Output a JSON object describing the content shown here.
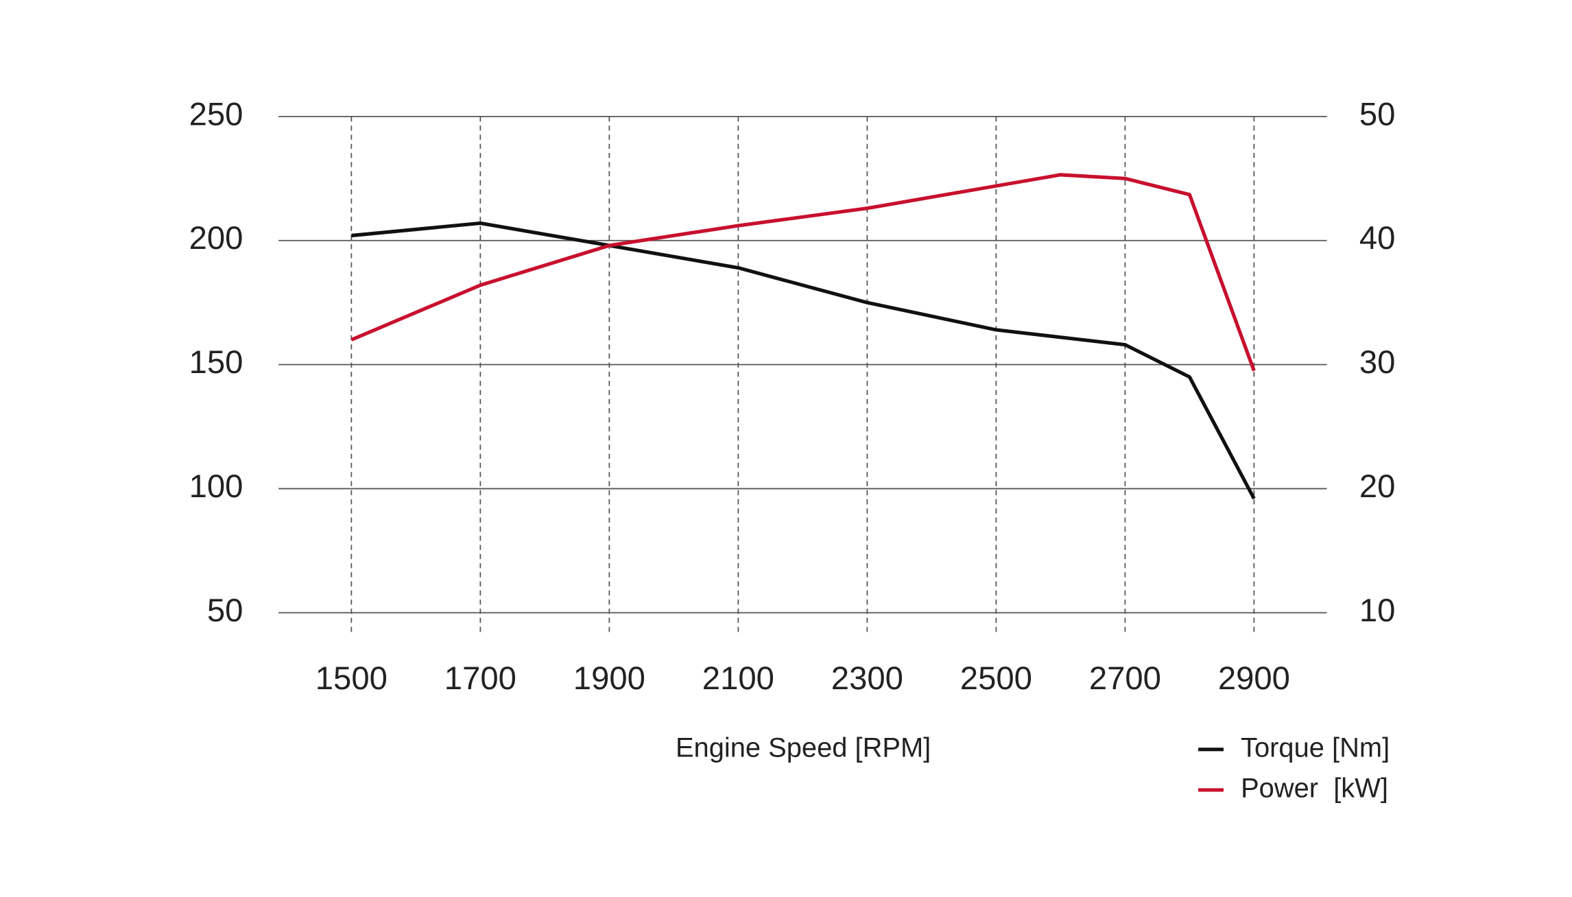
{
  "chart_data": {
    "type": "line",
    "x_label": "Engine Speed [RPM]",
    "x": [
      1500,
      1700,
      1900,
      2100,
      2300,
      2500,
      2600,
      2700,
      2800,
      2900
    ],
    "series": [
      {
        "name": "Torque [Nm]",
        "color": "#111111",
        "values": [
          202,
          207,
          198,
          189,
          175,
          164,
          161,
          158,
          145,
          96
        ]
      },
      {
        "name": "Power  [kW]",
        "color": "#c8102e",
        "axis": "y2",
        "values": [
          32,
          36.4,
          39.6,
          41.2,
          42.6,
          44.4,
          45.3,
          45.0,
          43.7,
          29.5
        ]
      }
    ],
    "xlim": [
      1387,
      3013
    ],
    "xticks": [
      1500,
      1700,
      1900,
      2100,
      2300,
      2500,
      2700,
      2900
    ],
    "ylim": [
      50,
      250
    ],
    "yticks": [
      50,
      100,
      150,
      200,
      250
    ],
    "y2lim": [
      10,
      50
    ],
    "y2ticks": [
      10,
      20,
      30,
      40,
      50
    ],
    "grid": true,
    "legend": "bottom-right"
  }
}
